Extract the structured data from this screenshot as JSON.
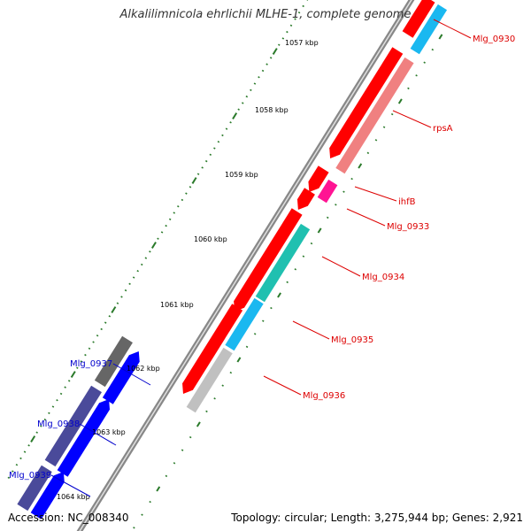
{
  "title": "Alkalilimnicola ehrlichii MLHE-1, complete genome",
  "footer": {
    "accession_label": "Accession:",
    "accession": "NC_008340",
    "topology_label": "Topology:",
    "topology": "circular; Length: 3,275,944 bp; Genes: 2,921"
  },
  "scale_labels": [
    "1057 kbp",
    "1058 kbp",
    "1059 kbp",
    "1060 kbp",
    "1061 kbp",
    "1062 kbp",
    "1063 kbp",
    "1064 kbp"
  ],
  "genes_right": [
    {
      "label": "Mlg_0930",
      "color": "#dd0000"
    },
    {
      "label": "rpsA",
      "color": "#dd0000"
    },
    {
      "label": "ihfB",
      "color": "#dd0000"
    },
    {
      "label": "Mlg_0933",
      "color": "#dd0000"
    },
    {
      "label": "Mlg_0934",
      "color": "#dd0000"
    },
    {
      "label": "Mlg_0935",
      "color": "#dd0000"
    },
    {
      "label": "Mlg_0936",
      "color": "#dd0000"
    }
  ],
  "genes_left": [
    {
      "label": "Mlg_0937",
      "color": "#0000cc"
    },
    {
      "label": "Mlg_0938",
      "color": "#0000cc"
    },
    {
      "label": "Mlg_0939",
      "color": "#0000cc"
    }
  ],
  "colors": {
    "forward_cds": "#ff0000",
    "reverse_cds": "#0000ff",
    "backbone": "#888888",
    "tick": "#2a7a2a",
    "category_rpsA": "#f08080",
    "category_ihfB": "#ff1493",
    "category_0934": "#20c0b0",
    "category_0935": "#1ab8f0",
    "category_0936": "#c0c0c0",
    "category_0937": "#666666",
    "category_0938": "#4a4a9a"
  }
}
